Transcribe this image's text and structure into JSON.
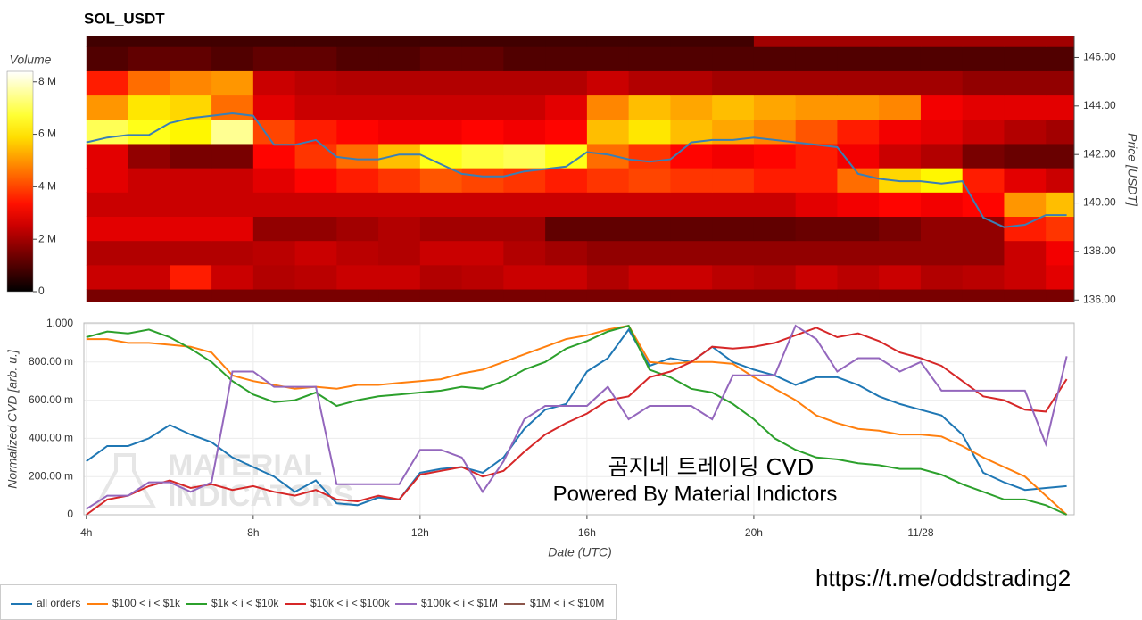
{
  "chart_data": [
    {
      "type": "heatmap",
      "title": "SOL_USDT",
      "xlim": [
        3.94,
        27.68
      ],
      "x_bins": [
        4,
        5,
        6,
        7,
        8,
        9,
        10,
        11,
        12,
        13,
        14,
        15,
        16,
        17,
        18,
        19,
        20,
        21,
        22,
        23,
        24,
        25,
        26,
        27,
        28
      ],
      "y_bins": [
        135.45,
        136.45,
        137.45,
        138.45,
        139.45,
        140.45,
        141.45,
        142.45,
        143.45,
        144.45,
        145.45,
        146.45,
        147.45
      ],
      "z": [
        [
          1.5,
          1.5,
          1.5,
          1.5,
          1.5,
          1.5,
          1.5,
          1.5,
          1.5,
          1.5,
          1.5,
          1.5,
          1.5,
          1.5,
          1.5,
          1.5,
          1.5,
          1.5,
          1.5,
          1.5,
          1.5,
          1.5,
          1.5,
          1.5
        ],
        [
          2.5,
          2.5,
          3.5,
          2.5,
          2.2,
          2.3,
          2.5,
          2.5,
          2.2,
          2.3,
          2.5,
          2.5,
          2.2,
          2.5,
          2.5,
          2.3,
          2.2,
          2.5,
          2.3,
          2.5,
          2.2,
          2.3,
          2.5,
          2.8
        ],
        [
          2.2,
          2.2,
          2.2,
          2.2,
          2.3,
          2.5,
          2.3,
          2.2,
          2.5,
          2.5,
          2.2,
          2.0,
          1.8,
          1.8,
          1.8,
          1.8,
          1.8,
          1.8,
          1.8,
          1.8,
          1.8,
          1.8,
          2.5,
          3.0
        ],
        [
          2.8,
          2.8,
          2.8,
          2.8,
          1.8,
          1.8,
          2.0,
          2.2,
          2.0,
          2.0,
          2.0,
          1.2,
          1.2,
          1.2,
          1.2,
          1.2,
          1.2,
          1.3,
          1.3,
          1.5,
          1.8,
          1.8,
          3.5,
          3.8
        ],
        [
          2.5,
          2.5,
          2.5,
          2.5,
          2.5,
          2.5,
          2.5,
          2.5,
          2.5,
          2.5,
          2.5,
          2.5,
          2.5,
          2.5,
          2.5,
          2.5,
          2.5,
          2.8,
          3.0,
          3.2,
          3.0,
          3.2,
          5.0,
          5.5
        ],
        [
          2.8,
          2.5,
          2.5,
          2.5,
          2.8,
          3.2,
          3.5,
          3.8,
          4.2,
          4.0,
          3.8,
          3.5,
          3.8,
          4.0,
          3.8,
          3.8,
          3.5,
          3.5,
          4.5,
          5.8,
          6.2,
          3.5,
          2.8,
          2.5
        ],
        [
          2.8,
          1.8,
          1.5,
          1.5,
          3.2,
          3.8,
          4.5,
          5.5,
          6.5,
          6.8,
          7.0,
          6.5,
          4.5,
          3.8,
          3.2,
          3.0,
          3.2,
          3.5,
          3.0,
          2.5,
          2.2,
          1.5,
          1.3,
          1.3
        ],
        [
          7.0,
          6.5,
          6.2,
          7.5,
          4.0,
          3.5,
          3.2,
          3.0,
          3.0,
          3.2,
          3.0,
          3.2,
          5.5,
          6.0,
          5.5,
          5.2,
          4.8,
          4.2,
          3.5,
          3.0,
          2.8,
          2.5,
          2.2,
          2.0
        ],
        [
          5.0,
          6.0,
          5.8,
          4.5,
          2.8,
          2.5,
          2.5,
          2.5,
          2.5,
          2.5,
          2.5,
          2.8,
          4.8,
          5.5,
          5.2,
          5.5,
          5.2,
          5.0,
          5.0,
          4.8,
          3.0,
          2.8,
          2.8,
          2.8
        ],
        [
          3.5,
          4.5,
          4.8,
          5.0,
          2.5,
          2.3,
          2.2,
          2.2,
          2.2,
          2.2,
          2.2,
          2.2,
          2.5,
          2.2,
          2.2,
          2.0,
          2.0,
          2.0,
          2.0,
          2.0,
          2.0,
          1.8,
          1.8,
          1.8
        ],
        [
          1.0,
          1.2,
          1.2,
          1.0,
          1.2,
          1.2,
          1.0,
          1.0,
          1.2,
          1.2,
          1.0,
          1.0,
          1.0,
          1.0,
          1.0,
          1.0,
          1.0,
          1.0,
          1.0,
          1.0,
          1.0,
          1.0,
          1.0,
          1.0
        ],
        [
          0.8,
          0.8,
          0.8,
          0.8,
          0.8,
          0.8,
          0.8,
          0.8,
          0.8,
          0.8,
          0.8,
          0.8,
          0.8,
          0.8,
          0.8,
          0.8,
          2.0,
          2.0,
          2.0,
          2.0,
          2.0,
          2.0,
          2.0,
          2.0
        ]
      ],
      "colorbar": {
        "title": "Volume",
        "lim": [
          0,
          8.4
        ],
        "ticks": [
          0,
          {
            "value": 2,
            "label": "2 M"
          },
          {
            "value": 4,
            "label": "4 M"
          },
          {
            "value": 6,
            "label": "6 M"
          },
          {
            "value": 8,
            "label": "8 M"
          }
        ]
      },
      "y2lim": [
        135.9,
        146.9
      ],
      "y2ticks": [
        {
          "value": 136,
          "label": "136.00"
        },
        {
          "value": 138,
          "label": "138.00"
        },
        {
          "value": 140,
          "label": "140.00"
        },
        {
          "value": 142,
          "label": "142.00"
        },
        {
          "value": 144,
          "label": "144.00"
        },
        {
          "value": 146,
          "label": "146.00"
        }
      ],
      "y2label": "Price [USDT]",
      "x": [
        4,
        4.5,
        5,
        5.5,
        6,
        6.5,
        7,
        7.5,
        8,
        8.5,
        9,
        9.5,
        10,
        10.5,
        11,
        11.5,
        12,
        12.5,
        13,
        13.5,
        14,
        14.5,
        15,
        15.5,
        16,
        16.5,
        17,
        17.5,
        18,
        18.5,
        19,
        19.5,
        20,
        20.5,
        21,
        21.5,
        22,
        22.5,
        23,
        23.5,
        24,
        24.5,
        25,
        25.5,
        26,
        26.5,
        27,
        27.5
      ],
      "series": [
        {
          "color": "#3a7fb5",
          "axis": "y2",
          "values": [
            142.5,
            142.7,
            142.8,
            142.8,
            143.3,
            143.5,
            143.6,
            143.7,
            143.6,
            142.4,
            142.4,
            142.6,
            141.9,
            141.8,
            141.8,
            142.0,
            142.0,
            141.6,
            141.2,
            141.1,
            141.1,
            141.3,
            141.4,
            141.5,
            142.1,
            142.0,
            141.8,
            141.7,
            141.8,
            142.5,
            142.6,
            142.6,
            142.7,
            142.6,
            142.5,
            142.4,
            142.3,
            141.2,
            141.0,
            140.9,
            140.9,
            140.8,
            140.9,
            139.4,
            139.0,
            139.1,
            139.5,
            139.5
          ]
        }
      ]
    },
    {
      "type": "line",
      "xlim": [
        3.94,
        27.68
      ],
      "xticks": [
        {
          "value": 4,
          "label": "4h"
        },
        {
          "value": 8,
          "label": "8h"
        },
        {
          "value": 12,
          "label": "12h"
        },
        {
          "value": 16,
          "label": "16h"
        },
        {
          "value": 20,
          "label": "20h"
        },
        {
          "value": 24,
          "label": "11/28"
        }
      ],
      "xlabel": "Date (UTC)",
      "ylim": [
        0,
        1
      ],
      "yticks": [
        0,
        {
          "value": 0.2,
          "label": "200.00 m"
        },
        {
          "value": 0.4,
          "label": "400.00 m"
        },
        {
          "value": 0.6,
          "label": "600.00 m"
        },
        {
          "value": 0.8,
          "label": "800.00 m"
        },
        {
          "value": 1,
          "label": "1.000"
        }
      ],
      "ylabel": "Normalized CVD [arb. u.]",
      "grid": true,
      "legend": "bottom-left",
      "x": [
        4,
        4.5,
        5,
        5.5,
        6,
        6.5,
        7,
        7.5,
        8,
        8.5,
        9,
        9.5,
        10,
        10.5,
        11,
        11.5,
        12,
        12.5,
        13,
        13.5,
        14,
        14.5,
        15,
        15.5,
        16,
        16.5,
        17,
        17.5,
        18,
        18.5,
        19,
        19.5,
        20,
        20.5,
        21,
        21.5,
        22,
        22.5,
        23,
        23.5,
        24,
        24.5,
        25,
        25.5,
        26,
        26.5,
        27,
        27.5
      ],
      "series": [
        {
          "name": "all orders",
          "color": "#1f77b4",
          "values": [
            0.28,
            0.36,
            0.36,
            0.4,
            0.47,
            0.42,
            0.38,
            0.3,
            0.25,
            0.2,
            0.12,
            0.18,
            0.06,
            0.05,
            0.09,
            0.08,
            0.22,
            0.24,
            0.25,
            0.22,
            0.3,
            0.45,
            0.55,
            0.58,
            0.75,
            0.82,
            0.97,
            0.78,
            0.82,
            0.8,
            0.88,
            0.8,
            0.76,
            0.73,
            0.68,
            0.72,
            0.72,
            0.68,
            0.62,
            0.58,
            0.55,
            0.52,
            0.42,
            0.22,
            0.17,
            0.13,
            0.14,
            0.15
          ]
        },
        {
          "name": "$100 < i < $1k",
          "color": "#ff7f0e",
          "values": [
            0.92,
            0.92,
            0.9,
            0.9,
            0.89,
            0.88,
            0.85,
            0.73,
            0.7,
            0.68,
            0.66,
            0.67,
            0.66,
            0.68,
            0.68,
            0.69,
            0.7,
            0.71,
            0.74,
            0.76,
            0.8,
            0.84,
            0.88,
            0.92,
            0.94,
            0.97,
            0.99,
            0.8,
            0.79,
            0.8,
            0.8,
            0.79,
            0.72,
            0.66,
            0.6,
            0.52,
            0.48,
            0.45,
            0.44,
            0.42,
            0.42,
            0.41,
            0.36,
            0.3,
            0.25,
            0.2,
            0.1,
            0.0
          ]
        },
        {
          "name": "$1k < i < $10k",
          "color": "#2ca02c",
          "values": [
            0.93,
            0.96,
            0.95,
            0.97,
            0.93,
            0.87,
            0.8,
            0.7,
            0.63,
            0.59,
            0.6,
            0.64,
            0.57,
            0.6,
            0.62,
            0.63,
            0.64,
            0.65,
            0.67,
            0.66,
            0.7,
            0.76,
            0.8,
            0.87,
            0.91,
            0.96,
            0.99,
            0.76,
            0.72,
            0.66,
            0.64,
            0.58,
            0.5,
            0.4,
            0.34,
            0.3,
            0.29,
            0.27,
            0.26,
            0.24,
            0.24,
            0.21,
            0.16,
            0.12,
            0.08,
            0.08,
            0.05,
            0.0
          ]
        },
        {
          "name": "$10k < i < $100k",
          "color": "#d62728",
          "values": [
            0.0,
            0.08,
            0.1,
            0.15,
            0.18,
            0.14,
            0.16,
            0.13,
            0.15,
            0.12,
            0.1,
            0.13,
            0.08,
            0.07,
            0.1,
            0.08,
            0.21,
            0.23,
            0.25,
            0.2,
            0.23,
            0.33,
            0.42,
            0.48,
            0.53,
            0.6,
            0.62,
            0.72,
            0.75,
            0.8,
            0.88,
            0.87,
            0.88,
            0.9,
            0.94,
            0.98,
            0.93,
            0.95,
            0.91,
            0.85,
            0.82,
            0.78,
            0.7,
            0.62,
            0.6,
            0.55,
            0.54,
            0.71
          ]
        },
        {
          "name": "$100k < i < $1M",
          "color": "#9467bd",
          "values": [
            0.03,
            0.1,
            0.1,
            0.17,
            0.17,
            0.12,
            0.17,
            0.75,
            0.75,
            0.67,
            0.67,
            0.67,
            0.16,
            0.16,
            0.16,
            0.16,
            0.34,
            0.34,
            0.3,
            0.12,
            0.28,
            0.5,
            0.57,
            0.57,
            0.57,
            0.67,
            0.5,
            0.57,
            0.57,
            0.57,
            0.5,
            0.73,
            0.73,
            0.73,
            0.99,
            0.92,
            0.75,
            0.82,
            0.82,
            0.75,
            0.8,
            0.65,
            0.65,
            0.65,
            0.65,
            0.65,
            0.37,
            0.83
          ]
        },
        {
          "name": "$1M < i < $10M",
          "color": "#8c564b",
          "values": [
            null,
            null,
            null,
            null,
            null,
            null,
            null,
            null,
            null,
            null,
            null,
            null,
            null,
            null,
            null,
            null,
            null,
            null,
            null,
            null,
            null,
            null,
            null,
            null,
            null,
            null,
            null,
            null,
            null,
            null,
            null,
            null,
            null,
            null,
            null,
            null,
            null,
            null,
            null,
            null,
            null,
            null,
            null,
            null,
            null,
            null,
            null,
            null
          ]
        }
      ],
      "annotations": [
        "MATERIAL",
        "INDICATORS",
        "곰지네 트레이딩 CVD",
        "Powered By Material Indictors",
        "https://t.me/oddstrading2"
      ]
    }
  ]
}
